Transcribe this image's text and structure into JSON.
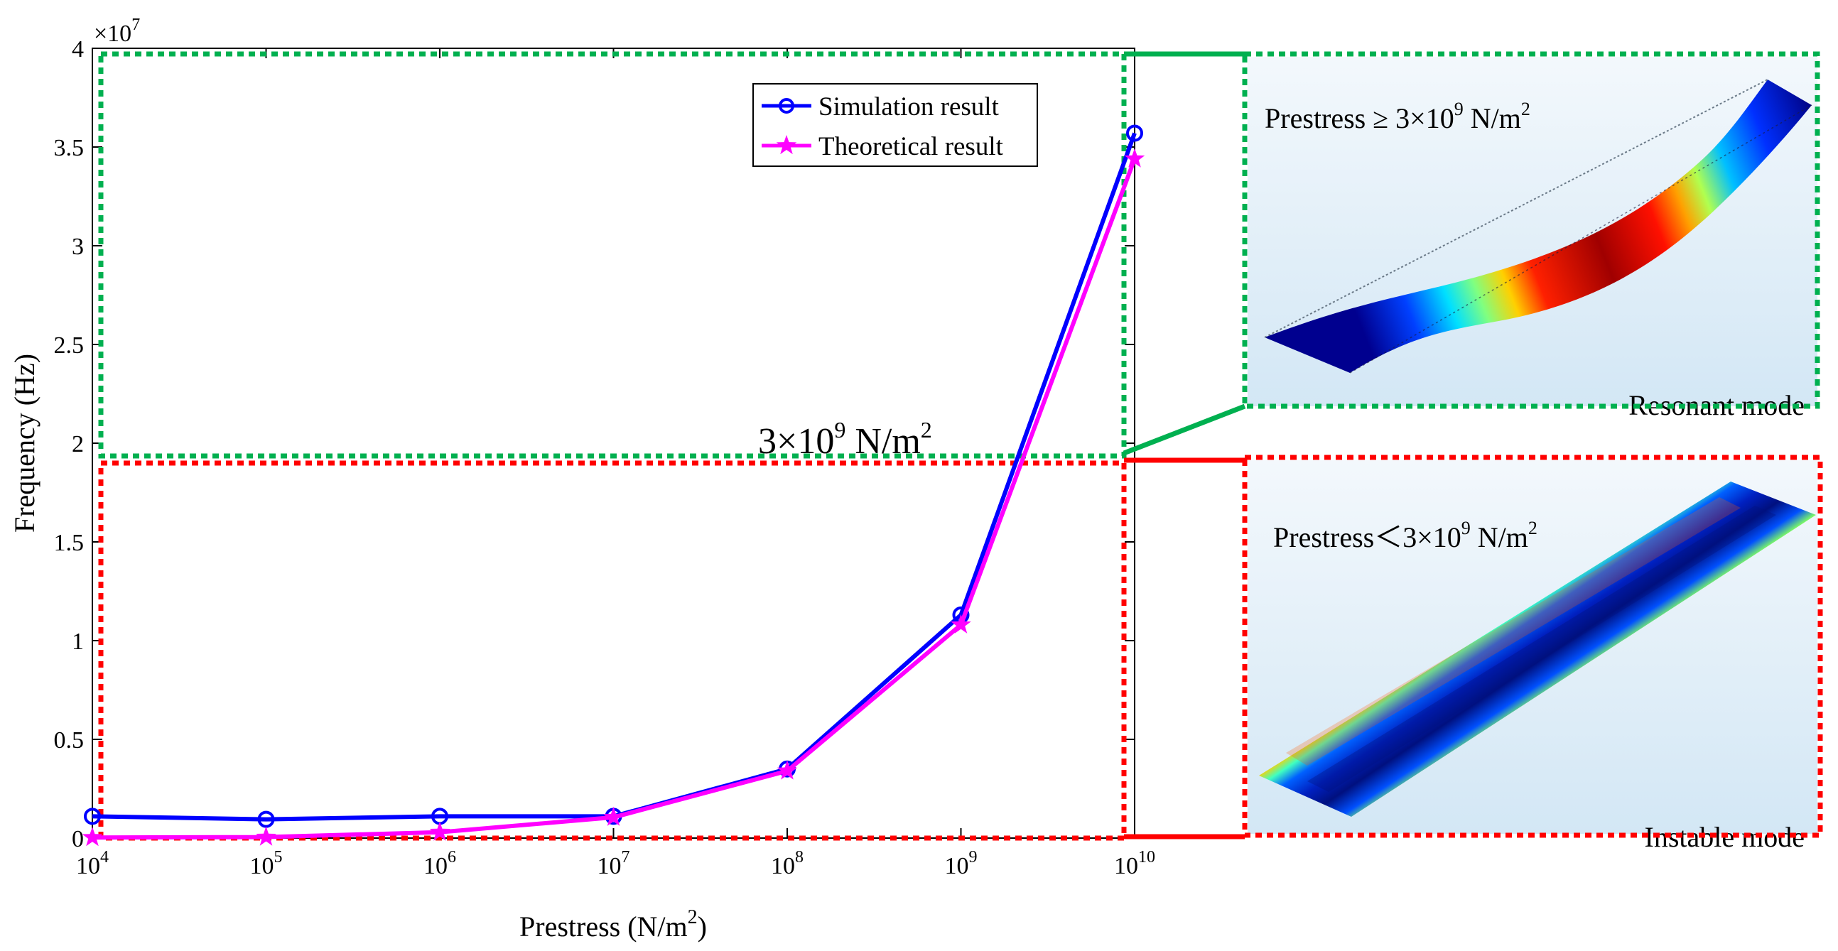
{
  "chart_data": {
    "type": "line",
    "xlabel": "Prestress (N/m",
    "xlabel_sup": "2",
    "xlabel_close": ")",
    "ylabel": "Frequency (Hz)",
    "y_multiplier": "×10",
    "y_multiplier_exp": "7",
    "x_scale": "log",
    "xlim": [
      10000,
      10000000000
    ],
    "ylim": [
      0,
      40000000
    ],
    "x_tick_values": [
      10000,
      100000,
      1000000,
      10000000,
      100000000,
      1000000000,
      10000000000
    ],
    "x_tick_base": "10",
    "x_tick_exps": [
      "4",
      "5",
      "6",
      "7",
      "8",
      "9",
      "10"
    ],
    "y_tick_values": [
      0,
      5000000,
      10000000,
      15000000,
      20000000,
      25000000,
      30000000,
      35000000,
      40000000
    ],
    "y_tick_labels": [
      "0",
      "0.5",
      "1",
      "1.5",
      "2",
      "2.5",
      "3",
      "3.5",
      "4"
    ],
    "x": [
      10000,
      100000,
      1000000,
      10000000,
      100000000,
      1000000000,
      10000000000
    ],
    "series": [
      {
        "name": "Simulation result",
        "color": "#0000ff",
        "marker": "circle",
        "values": [
          1100000,
          950000,
          1100000,
          1100000,
          3500000,
          11300000,
          35700000
        ]
      },
      {
        "name": "Theoretical result",
        "color": "#ff00ff",
        "marker": "star",
        "values": [
          30000,
          50000,
          300000,
          1050000,
          3400000,
          10800000,
          34400000
        ]
      }
    ],
    "legend_position": "top-right",
    "grid": false
  },
  "annotations": {
    "threshold_prefix": "3×10",
    "threshold_exp": "9",
    "threshold_suffix": " N/m",
    "threshold_unit_exp": "2",
    "threshold_value": 3000000000,
    "resonant_prefix": "Prestress ≥ 3×10",
    "resonant_exp": "9",
    "resonant_suffix": " N/m",
    "resonant_unit_exp": "2",
    "resonant_mode_label": "Resonant mode",
    "instable_prefix": "Prestress＜3×10",
    "instable_exp": "9",
    "instable_suffix": " N/m",
    "instable_unit_exp": "2",
    "instable_mode_label": "Instable mode"
  },
  "colors": {
    "resonant_box": "#00b050",
    "instable_box": "#ff0000",
    "panel_bg": "#dcecf7"
  }
}
